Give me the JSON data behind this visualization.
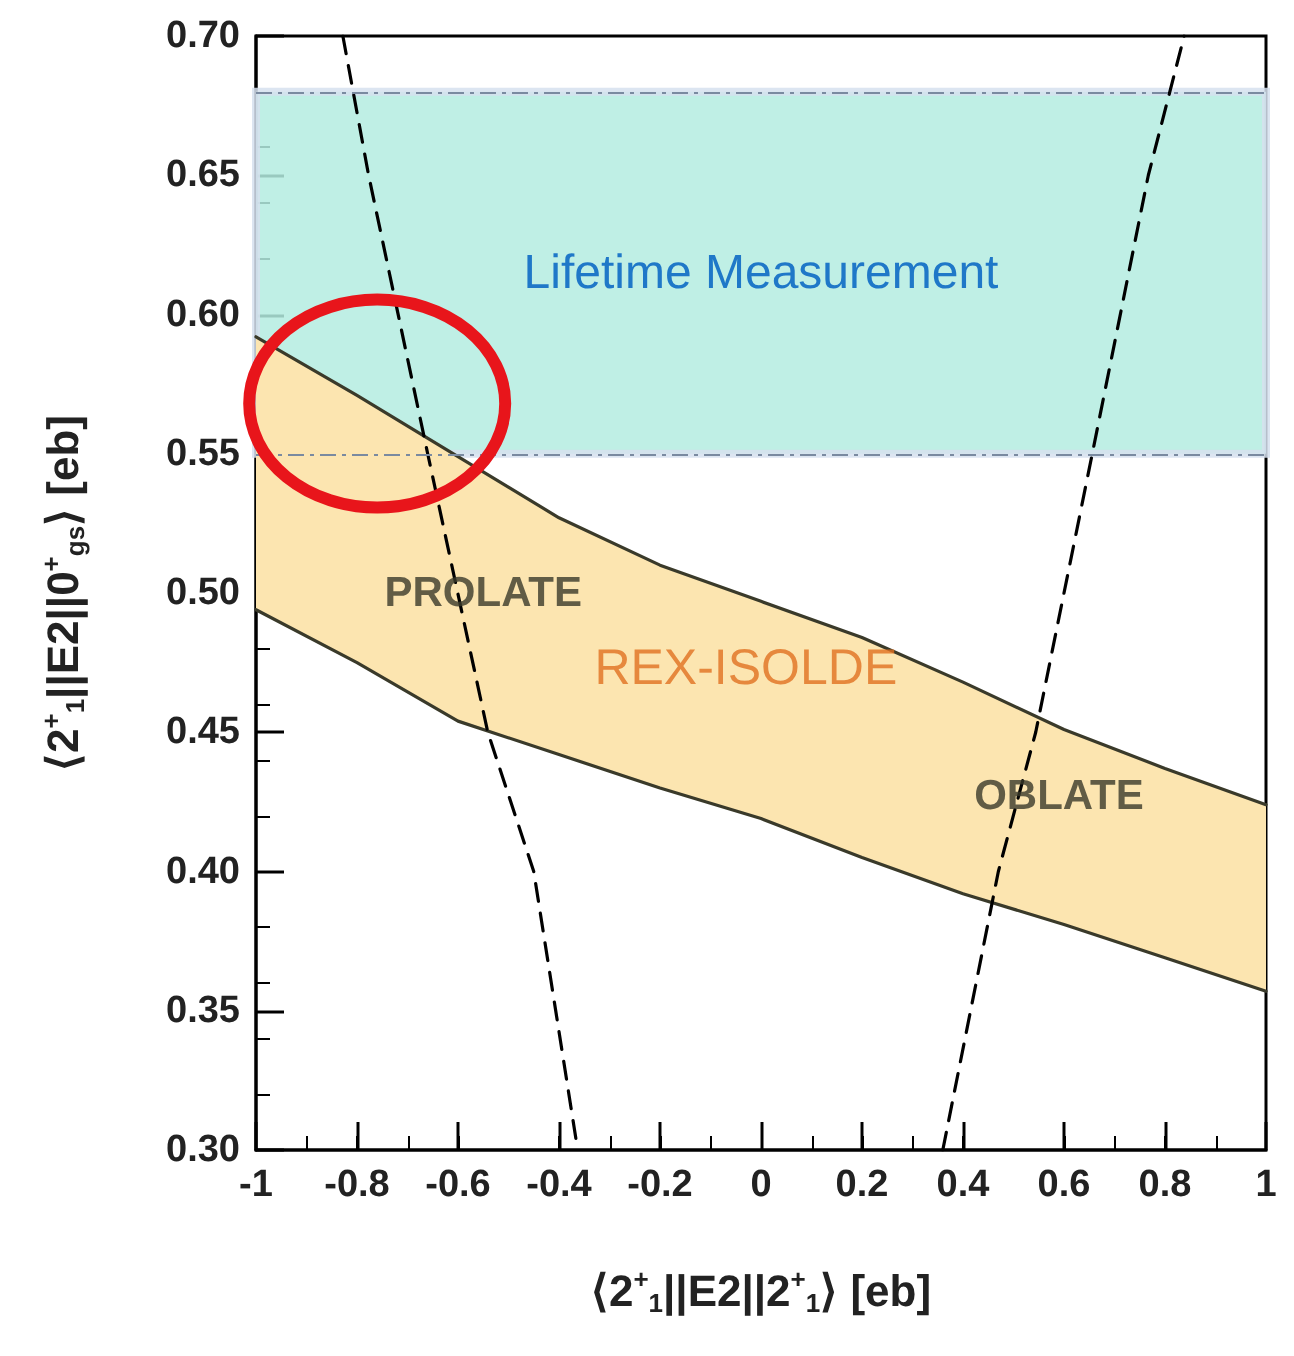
{
  "chart_data": {
    "type": "line",
    "xlabel": "⟨2$^{+}$$_{1}$||E2||2$^{+}$$_{1}$⟩ [eb]",
    "ylabel": "⟨2$^{+}$$_{1}$||E2||0$^{+}$$_{gs}$⟩ [eb]",
    "x": [
      -1,
      -0.8,
      -0.6,
      -0.4,
      -0.2,
      0,
      0.2,
      0.4,
      0.6,
      0.8,
      1
    ],
    "series": [
      {
        "type": "line",
        "color": "#3a3a2a",
        "line_style": "solid",
        "values": [
          0.592,
          0.571,
          0.549,
          0.527,
          0.51,
          0.497,
          0.484,
          0.468,
          0.451,
          0.437,
          0.424
        ],
        "lower": [
          0.494,
          0.475,
          0.454,
          0.442,
          0.43,
          0.419,
          0.405,
          0.392,
          0.381,
          0.369,
          0.357
        ],
        "upper": [
          0.592,
          0.571,
          0.549,
          0.527,
          0.51,
          0.497,
          0.484,
          0.468,
          0.451,
          0.437,
          0.424
        ]
      },
      {
        "type": "line",
        "color": "#3a3a2a",
        "line_style": "solid",
        "values": [
          0.494,
          0.475,
          0.454,
          0.442,
          0.43,
          0.419,
          0.405,
          0.392,
          0.381,
          0.369,
          0.357
        ]
      },
      {
        "type": "line",
        "color": "#000000",
        "line_style": "dashed",
        "x": [
          -0.828,
          -0.777,
          -0.66,
          -0.541,
          -0.45,
          -0.363
        ],
        "values": [
          0.7,
          0.65,
          0.55,
          0.45,
          0.4,
          0.3
        ]
      },
      {
        "type": "line",
        "color": "#000000",
        "line_style": "dashed",
        "x": [
          0.36,
          0.47,
          0.544,
          0.656,
          0.767,
          0.838
        ],
        "values": [
          0.3,
          0.4,
          0.45,
          0.55,
          0.65,
          0.7
        ]
      }
    ],
    "bands": [
      {
        "axis": "y",
        "from": 0.55,
        "to": 0.68,
        "label": "Lifetime Measurement",
        "color": "#b4ece0"
      }
    ],
    "annotations": [
      "PROLATE",
      "REX-ISOLDE",
      "OBLATE"
    ],
    "marker": "none",
    "xlim": [
      -1,
      1
    ],
    "xticks": [
      -1,
      -0.8,
      -0.6,
      -0.4,
      -0.2,
      0,
      0.2,
      0.4,
      0.6,
      0.8,
      1
    ],
    "ylim": [
      0.3,
      0.7
    ],
    "yticks": [
      {
        "value": 0.3,
        "label": "0.30"
      },
      {
        "value": 0.35,
        "label": "0.35"
      },
      {
        "value": 0.4,
        "label": "0.40"
      },
      {
        "value": 0.45,
        "label": "0.45"
      },
      {
        "value": 0.5,
        "label": "0.50"
      },
      {
        "value": 0.55,
        "label": "0.55"
      },
      {
        "value": 0.6,
        "label": "0.60"
      },
      {
        "value": 0.65,
        "label": "0.65"
      },
      {
        "value": 0.7,
        "label": "0.70"
      }
    ]
  }
}
